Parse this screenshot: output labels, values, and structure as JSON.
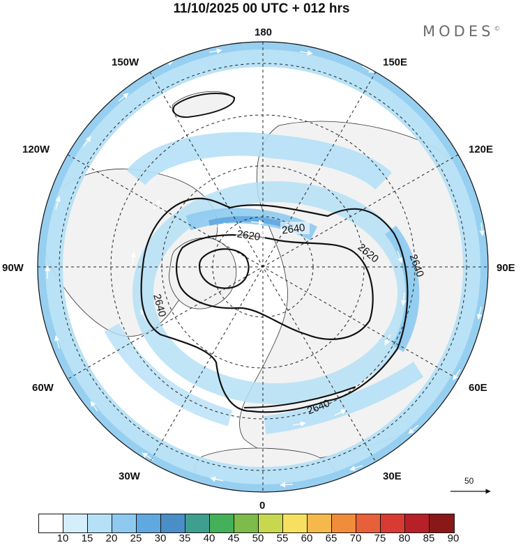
{
  "title": "11/10/2025  00 UTC  + 012 hrs",
  "logo": "MODES",
  "logo_mark": "©",
  "map": {
    "projection": "north-polar-stereographic",
    "land_color": "#f2f2f2",
    "ocean_color": "#ffffff",
    "outline_color": "#111111",
    "longitude_labels": [
      {
        "id": "180",
        "text": "180"
      },
      {
        "id": "150e",
        "text": "150E"
      },
      {
        "id": "120e",
        "text": "120E"
      },
      {
        "id": "90e",
        "text": "90E"
      },
      {
        "id": "60e",
        "text": "60E"
      },
      {
        "id": "30e",
        "text": "30E"
      },
      {
        "id": "0",
        "text": "0"
      },
      {
        "id": "30w",
        "text": "30W"
      },
      {
        "id": "60w",
        "text": "60W"
      },
      {
        "id": "90w",
        "text": "90W"
      },
      {
        "id": "120w",
        "text": "120W"
      },
      {
        "id": "150w",
        "text": "150W"
      }
    ],
    "contour_labels": [
      "2640",
      "2620",
      "2620",
      "2640",
      "2640",
      "2640"
    ],
    "reference_vector": "50"
  },
  "colorbar": {
    "labels": [
      "10",
      "15",
      "20",
      "25",
      "30",
      "35",
      "40",
      "45",
      "50",
      "55",
      "60",
      "65",
      "70",
      "75",
      "80",
      "85",
      "90"
    ],
    "colors": [
      "#ffffff",
      "#d4eefb",
      "#b5e0f6",
      "#8ecaf0",
      "#5fa8e0",
      "#4a8ec8",
      "#3f9f8f",
      "#45b05a",
      "#7dbb4a",
      "#c7d84e",
      "#f7e060",
      "#f5b84a",
      "#f08c3a",
      "#e8603a",
      "#d93a34",
      "#b82028",
      "#8a1818"
    ]
  }
}
